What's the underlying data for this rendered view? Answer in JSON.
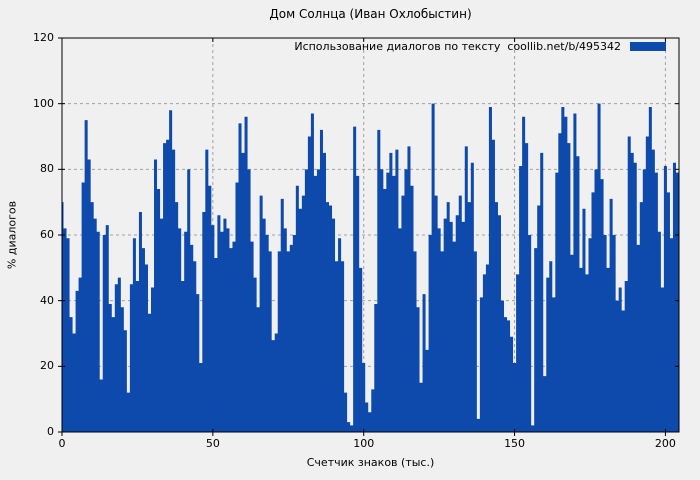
{
  "chart_data": {
    "type": "bar",
    "title": "Дом Солнца (Иван Охлобыстин)",
    "legend": "Использование диалогов по тексту  coollib.net/b/495342",
    "xlabel": "Счетчик знаков (тыс.)",
    "ylabel": "% диалогов",
    "xlim": [
      0,
      204.5
    ],
    "ylim": [
      0,
      120
    ],
    "x_ticks": [
      0,
      50,
      100,
      150,
      200
    ],
    "y_ticks": [
      0,
      20,
      40,
      60,
      80,
      100,
      120
    ],
    "grid": true,
    "legend_position": "top-right-inside",
    "x_start": 0,
    "x_step": 1,
    "values": [
      70,
      62,
      59,
      35,
      30,
      43,
      47,
      76,
      95,
      83,
      70,
      65,
      61,
      16,
      60,
      63,
      39,
      35,
      45,
      47,
      38,
      31,
      12,
      45,
      59,
      46,
      67,
      56,
      51,
      36,
      44,
      83,
      74,
      65,
      88,
      89,
      98,
      86,
      70,
      62,
      46,
      61,
      80,
      57,
      52,
      42,
      21,
      67,
      86,
      75,
      63,
      53,
      66,
      61,
      65,
      62,
      56,
      58,
      76,
      94,
      85,
      96,
      80,
      58,
      47,
      38,
      72,
      65,
      60,
      55,
      28,
      30,
      55,
      71,
      62,
      55,
      57,
      60,
      75,
      68,
      72,
      80,
      90,
      97,
      78,
      80,
      92,
      85,
      70,
      69,
      65,
      52,
      59,
      52,
      12,
      3,
      2,
      93,
      78,
      50,
      21,
      9,
      6,
      13,
      39,
      92,
      80,
      74,
      79,
      85,
      78,
      86,
      62,
      72,
      80,
      87,
      75,
      55,
      38,
      15,
      42,
      25,
      60,
      100,
      72,
      62,
      55,
      65,
      70,
      64,
      58,
      66,
      72,
      64,
      87,
      70,
      82,
      55,
      4,
      41,
      48,
      51,
      99,
      89,
      70,
      66,
      40,
      35,
      34,
      29,
      21,
      48,
      81,
      96,
      88,
      60,
      2,
      56,
      69,
      85,
      17,
      47,
      52,
      41,
      79,
      91,
      99,
      96,
      88,
      54,
      97,
      84,
      50,
      68,
      48,
      59,
      73,
      80,
      100,
      77,
      60,
      50,
      71,
      60,
      40,
      44,
      37,
      46,
      90,
      85,
      82,
      57,
      70,
      80,
      90,
      99,
      86,
      79,
      61,
      44,
      81,
      73,
      59,
      82,
      79
    ],
    "colors": {
      "bar": "#0D4AAC",
      "background": "#F0F0F0",
      "grid": "#A0A0A0",
      "border": "#000000",
      "text": "#000000"
    }
  }
}
